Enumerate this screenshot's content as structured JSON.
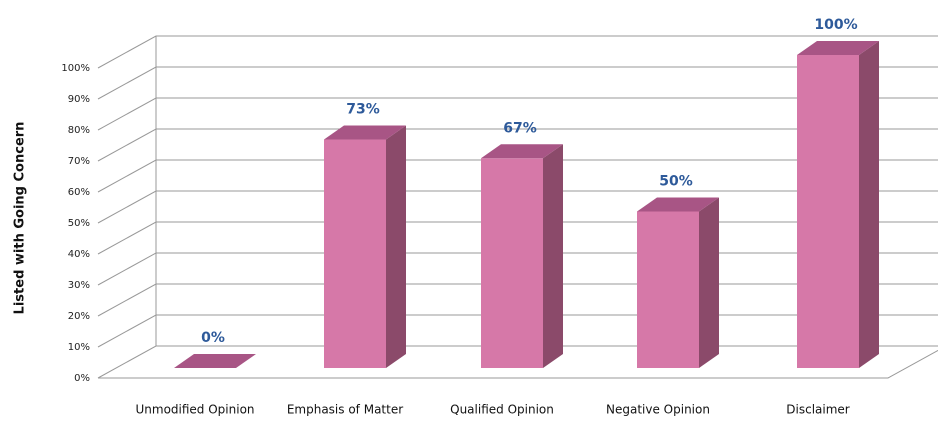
{
  "chart_data": {
    "type": "bar3d",
    "y_axis_label": "Listed with Going Concern",
    "categories": [
      "Unmodified Opinion",
      "Emphasis of Matter",
      "Qualified Opinion",
      "Negative Opinion",
      "Disclaimer"
    ],
    "values": [
      0,
      73,
      67,
      50,
      100
    ],
    "value_labels": [
      "0%",
      "73%",
      "67%",
      "50%",
      "100%"
    ],
    "color": "#d678a8",
    "ylim": [
      0,
      100
    ],
    "yticks": [
      {
        "value": 0,
        "label": "0%"
      },
      {
        "value": 10,
        "label": "10%"
      },
      {
        "value": 20,
        "label": "20%"
      },
      {
        "value": 30,
        "label": "30%"
      },
      {
        "value": 40,
        "label": "40%"
      },
      {
        "value": 50,
        "label": "50%"
      },
      {
        "value": 60,
        "label": "60%"
      },
      {
        "value": 70,
        "label": "70%"
      },
      {
        "value": 80,
        "label": "80%"
      },
      {
        "value": 90,
        "label": "90%"
      },
      {
        "value": 100,
        "label": "100%"
      }
    ],
    "grid": true
  }
}
